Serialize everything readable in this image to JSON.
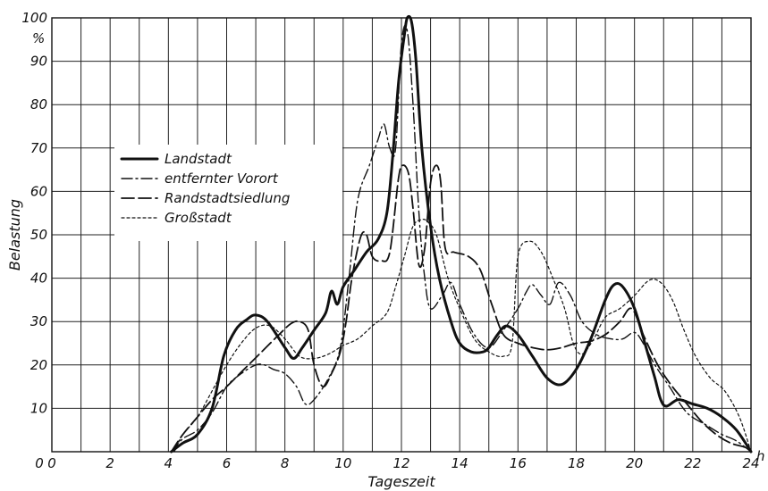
{
  "chart_data": {
    "type": "line",
    "title": "",
    "xlabel": "Tageszeit",
    "ylabel": "Belastung",
    "x_unit": "h",
    "y_unit": "%",
    "xlim": [
      0,
      24
    ],
    "ylim": [
      0,
      100
    ],
    "x_ticks": [
      0,
      2,
      4,
      6,
      8,
      10,
      12,
      14,
      16,
      18,
      20,
      22,
      24
    ],
    "x_tick_labels": [
      "0",
      "2",
      "4",
      "6",
      "8",
      "10",
      "12",
      "14",
      "16",
      "18",
      "20",
      "22",
      "24"
    ],
    "y_ticks": [
      10,
      20,
      30,
      40,
      50,
      60,
      70,
      80,
      90,
      100
    ],
    "y_tick_labels": [
      "10",
      "20",
      "30",
      "40",
      "50",
      "60",
      "70",
      "80",
      "90",
      "100"
    ],
    "grid": true,
    "legend_position": "top-left",
    "series": [
      {
        "name": "Landstadt",
        "style": "solid-thick",
        "points": [
          [
            4.1,
            0
          ],
          [
            4.5,
            2
          ],
          [
            5,
            4
          ],
          [
            5.5,
            10
          ],
          [
            5.9,
            22
          ],
          [
            6.3,
            28
          ],
          [
            6.7,
            30.5
          ],
          [
            7,
            31.5
          ],
          [
            7.4,
            30
          ],
          [
            8,
            24
          ],
          [
            8.3,
            21.5
          ],
          [
            8.6,
            24
          ],
          [
            9,
            28
          ],
          [
            9.4,
            32
          ],
          [
            9.6,
            37
          ],
          [
            9.8,
            34
          ],
          [
            10,
            38
          ],
          [
            10.4,
            42
          ],
          [
            10.8,
            46
          ],
          [
            11.2,
            49
          ],
          [
            11.5,
            55
          ],
          [
            11.7,
            68
          ],
          [
            11.9,
            85
          ],
          [
            12.1,
            96
          ],
          [
            12.2,
            100
          ],
          [
            12.35,
            99
          ],
          [
            12.5,
            90
          ],
          [
            12.7,
            70
          ],
          [
            13,
            52
          ],
          [
            13.3,
            40
          ],
          [
            13.7,
            30
          ],
          [
            14,
            25
          ],
          [
            14.4,
            23
          ],
          [
            14.8,
            23
          ],
          [
            15,
            24
          ],
          [
            15.3,
            27
          ],
          [
            15.6,
            29
          ],
          [
            16,
            27
          ],
          [
            16.5,
            22
          ],
          [
            17,
            17
          ],
          [
            17.5,
            15.5
          ],
          [
            18,
            19
          ],
          [
            18.5,
            26
          ],
          [
            19,
            35
          ],
          [
            19.3,
            38.5
          ],
          [
            19.6,
            38
          ],
          [
            20,
            33
          ],
          [
            20.4,
            24
          ],
          [
            20.7,
            17
          ],
          [
            20.9,
            12
          ],
          [
            21.1,
            10.5
          ],
          [
            21.5,
            12
          ],
          [
            22,
            11
          ],
          [
            22.5,
            10
          ],
          [
            23,
            8
          ],
          [
            23.5,
            5
          ],
          [
            24,
            0
          ]
        ]
      },
      {
        "name": "entfernter Vorort",
        "style": "dash-dot",
        "points": [
          [
            4.1,
            0
          ],
          [
            4.5,
            3
          ],
          [
            5,
            5
          ],
          [
            5.5,
            9
          ],
          [
            6,
            15
          ],
          [
            6.5,
            18
          ],
          [
            7,
            20
          ],
          [
            7.3,
            20
          ],
          [
            7.6,
            19
          ],
          [
            8,
            18
          ],
          [
            8.4,
            15
          ],
          [
            8.7,
            11
          ],
          [
            9,
            12
          ],
          [
            9.5,
            17
          ],
          [
            9.9,
            24
          ],
          [
            10.2,
            40
          ],
          [
            10.5,
            58
          ],
          [
            10.9,
            66
          ],
          [
            11.2,
            72
          ],
          [
            11.4,
            75.5
          ],
          [
            11.6,
            70
          ],
          [
            11.8,
            70
          ],
          [
            12,
            94
          ],
          [
            12.2,
            97
          ],
          [
            12.4,
            80
          ],
          [
            12.6,
            55
          ],
          [
            12.8,
            40
          ],
          [
            13,
            33
          ],
          [
            13.4,
            36
          ],
          [
            13.7,
            39
          ],
          [
            14,
            34
          ],
          [
            14.5,
            27
          ],
          [
            15,
            24
          ],
          [
            15.5,
            28
          ],
          [
            16,
            33
          ],
          [
            16.3,
            37
          ],
          [
            16.5,
            38.5
          ],
          [
            16.8,
            36
          ],
          [
            17.1,
            34
          ],
          [
            17.4,
            39
          ],
          [
            17.8,
            36
          ],
          [
            18.2,
            30
          ],
          [
            18.7,
            27
          ],
          [
            19.2,
            26
          ],
          [
            19.6,
            26
          ],
          [
            20,
            27.5
          ],
          [
            20.3,
            25
          ],
          [
            20.7,
            20
          ],
          [
            21.2,
            15
          ],
          [
            21.8,
            9
          ],
          [
            22.5,
            6
          ],
          [
            23,
            4
          ],
          [
            23.5,
            2.5
          ],
          [
            24,
            0
          ]
        ]
      },
      {
        "name": "Randstadtsiedlung",
        "style": "dashed",
        "points": [
          [
            4.1,
            0
          ],
          [
            4.5,
            4
          ],
          [
            5,
            8
          ],
          [
            5.5,
            12
          ],
          [
            6,
            15
          ],
          [
            6.6,
            19
          ],
          [
            7.2,
            23
          ],
          [
            7.8,
            27
          ],
          [
            8.2,
            29.5
          ],
          [
            8.5,
            30
          ],
          [
            8.8,
            28
          ],
          [
            9,
            20
          ],
          [
            9.3,
            15
          ],
          [
            9.6,
            18
          ],
          [
            9.9,
            23
          ],
          [
            10.1,
            30
          ],
          [
            10.3,
            40
          ],
          [
            10.6,
            49.5
          ],
          [
            10.8,
            50
          ],
          [
            11,
            45
          ],
          [
            11.3,
            44
          ],
          [
            11.6,
            46
          ],
          [
            11.9,
            63
          ],
          [
            12.05,
            66
          ],
          [
            12.25,
            64
          ],
          [
            12.4,
            56
          ],
          [
            12.6,
            43
          ],
          [
            12.8,
            47
          ],
          [
            13,
            62
          ],
          [
            13.2,
            66
          ],
          [
            13.35,
            62
          ],
          [
            13.5,
            47
          ],
          [
            13.8,
            46
          ],
          [
            14.3,
            45
          ],
          [
            14.7,
            42
          ],
          [
            15.1,
            34
          ],
          [
            15.5,
            27
          ],
          [
            16,
            25
          ],
          [
            16.5,
            24
          ],
          [
            17,
            23.5
          ],
          [
            17.5,
            24
          ],
          [
            18,
            25
          ],
          [
            18.5,
            25.5
          ],
          [
            19,
            27
          ],
          [
            19.5,
            30
          ],
          [
            19.9,
            33
          ],
          [
            20.3,
            27
          ],
          [
            20.8,
            20
          ],
          [
            21.3,
            15
          ],
          [
            21.8,
            11
          ],
          [
            22.3,
            7
          ],
          [
            22.8,
            4
          ],
          [
            23.3,
            2
          ],
          [
            23.8,
            1
          ],
          [
            24,
            0
          ]
        ]
      },
      {
        "name": "Großstadt",
        "style": "dotted",
        "points": [
          [
            4.2,
            0
          ],
          [
            4.5,
            4
          ],
          [
            5,
            8
          ],
          [
            5.5,
            14
          ],
          [
            6,
            20
          ],
          [
            6.5,
            25
          ],
          [
            7,
            28.5
          ],
          [
            7.5,
            29
          ],
          [
            8,
            26
          ],
          [
            8.5,
            22
          ],
          [
            9,
            21.5
          ],
          [
            9.5,
            22.5
          ],
          [
            10,
            24.5
          ],
          [
            10.5,
            26
          ],
          [
            11,
            29
          ],
          [
            11.5,
            32
          ],
          [
            11.8,
            38
          ],
          [
            12.1,
            45
          ],
          [
            12.4,
            52
          ],
          [
            12.7,
            53.5
          ],
          [
            12.9,
            53
          ],
          [
            13.2,
            50
          ],
          [
            13.6,
            40
          ],
          [
            14,
            33
          ],
          [
            14.5,
            26
          ],
          [
            15,
            23
          ],
          [
            15.5,
            22
          ],
          [
            15.8,
            25
          ],
          [
            16,
            45
          ],
          [
            16.4,
            48.5
          ],
          [
            16.8,
            46
          ],
          [
            17.2,
            40
          ],
          [
            17.6,
            33
          ],
          [
            17.9,
            25
          ],
          [
            18.2,
            22.5
          ],
          [
            18.6,
            26
          ],
          [
            19,
            31
          ],
          [
            19.5,
            33
          ],
          [
            20,
            36
          ],
          [
            20.5,
            39.5
          ],
          [
            20.9,
            39
          ],
          [
            21.3,
            35
          ],
          [
            21.7,
            28
          ],
          [
            22.1,
            22
          ],
          [
            22.6,
            17
          ],
          [
            23.1,
            14
          ],
          [
            23.6,
            8
          ],
          [
            24,
            0
          ]
        ]
      }
    ]
  }
}
